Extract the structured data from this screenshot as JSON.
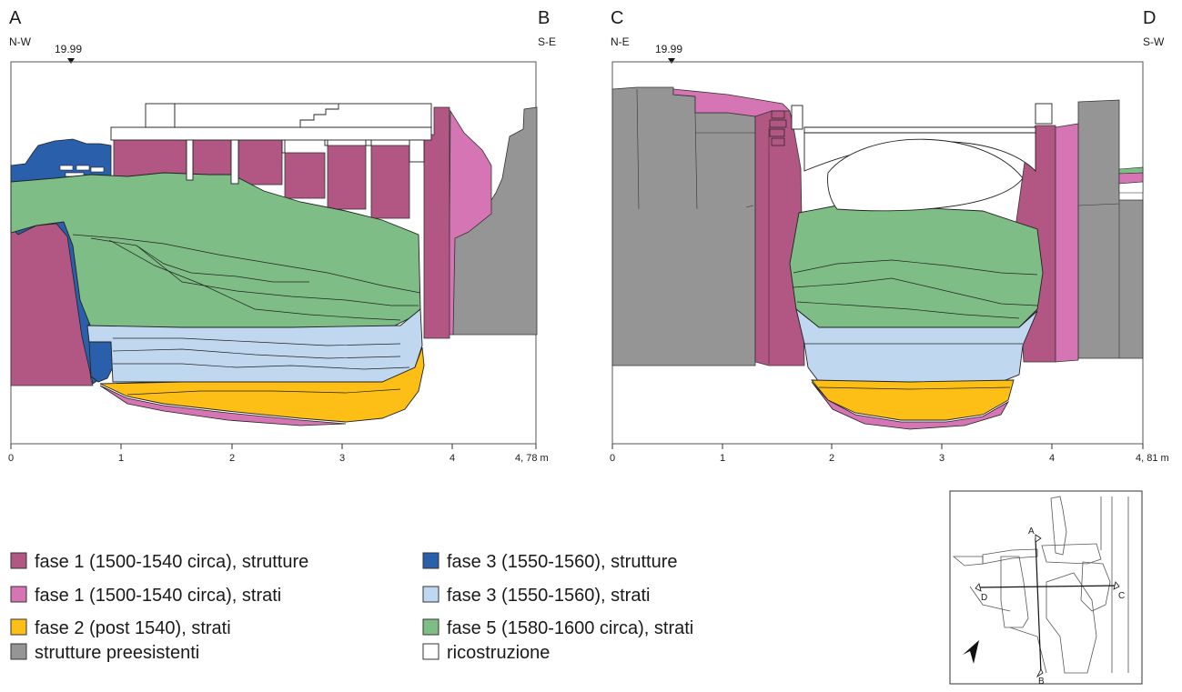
{
  "colors": {
    "fase1_strutture": "#b25683",
    "fase1_strati": "#d675b4",
    "fase2_strati": "#fdbe15",
    "fase3_strutture": "#2a5fab",
    "fase3_strati": "#bfd8f0",
    "fase5_strati": "#7fbd86",
    "preesistenti": "#959595",
    "ricostruzione": "#ffffff"
  },
  "section_ab": {
    "left_letter": "A",
    "left_dir": "N-W",
    "right_letter": "B",
    "right_dir": "S-E",
    "elevation": "19.99",
    "ticks": [
      "0",
      "1",
      "2",
      "3",
      "4"
    ],
    "end_label": "4, 78 m"
  },
  "section_cd": {
    "left_letter": "C",
    "left_dir": "N-E",
    "right_letter": "D",
    "right_dir": "S-W",
    "elevation": "19.99",
    "ticks": [
      "0",
      "1",
      "2",
      "3",
      "4"
    ],
    "end_label": "4, 81 m"
  },
  "legend": [
    {
      "label": "fase 1 (1500-1540 circa), strutture",
      "color_key": "fase1_strutture"
    },
    {
      "label": "fase 1 (1500-1540 circa), strati",
      "color_key": "fase1_strati"
    },
    {
      "label": "fase 2 (post 1540), strati",
      "color_key": "fase2_strati"
    },
    {
      "label": "strutture preesistenti",
      "color_key": "preesistenti"
    },
    {
      "label": "fase 3 (1550-1560), strutture",
      "color_key": "fase3_strutture"
    },
    {
      "label": "fase 3 (1550-1560), strati",
      "color_key": "fase3_strati"
    },
    {
      "label": "fase 5 (1580-1600 circa), strati",
      "color_key": "fase5_strati"
    },
    {
      "label": "ricostruzione",
      "color_key": "ricostruzione"
    }
  ],
  "keymap": {
    "label_a": "A",
    "label_b": "B",
    "label_c": "C",
    "label_d": "D",
    "north_icon": "north-arrow-icon"
  }
}
